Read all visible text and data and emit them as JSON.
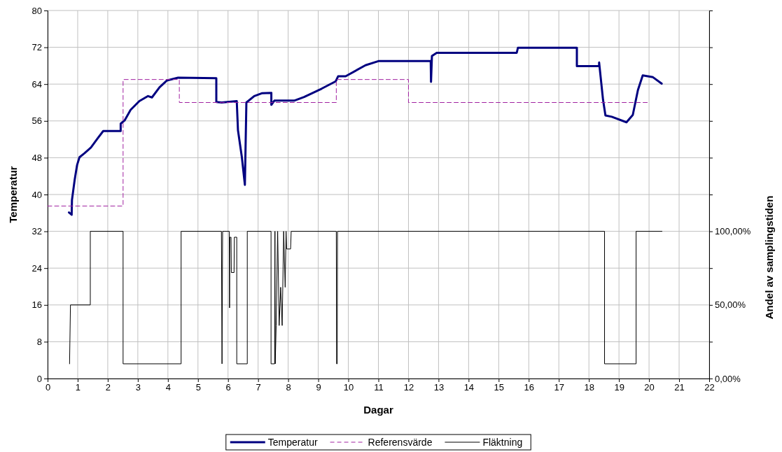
{
  "chart_data": {
    "type": "line",
    "xlabel": "Dagar",
    "ylabel": "Temperatur",
    "y2label": "Andel av samplingstiden",
    "xlim": [
      0,
      22
    ],
    "xticks": [
      0,
      1,
      2,
      3,
      4,
      5,
      6,
      7,
      8,
      9,
      10,
      11,
      12,
      13,
      14,
      15,
      16,
      17,
      18,
      19,
      20,
      21,
      22
    ],
    "ylim": [
      0,
      80
    ],
    "yticks": [
      0,
      8,
      16,
      24,
      32,
      40,
      48,
      56,
      64,
      72,
      80
    ],
    "y2lim": [
      0,
      250
    ],
    "y2ticks": [
      {
        "value": 0,
        "label": "0,00%"
      },
      {
        "value": 25,
        "label": null
      },
      {
        "value": 50,
        "label": "50,00%"
      },
      {
        "value": 75,
        "label": null
      },
      {
        "value": 100,
        "label": "100,00%"
      },
      {
        "value": 125,
        "label": null
      },
      {
        "value": 150,
        "label": null
      },
      {
        "value": 175,
        "label": null
      },
      {
        "value": 200,
        "label": null
      },
      {
        "value": 225,
        "label": null
      },
      {
        "value": 250,
        "label": null
      }
    ],
    "grid": true,
    "legend": "bottom",
    "marker": "none",
    "series": [
      {
        "name": "Temperatur",
        "color": "#000080",
        "line_style": "solid",
        "x": [
          0.71,
          0.8,
          0.81,
          0.9,
          0.98,
          1.06,
          1.23,
          1.44,
          1.64,
          1.85,
          2.43,
          2.43,
          2.56,
          2.76,
          3.05,
          3.34,
          3.47,
          3.72,
          3.97,
          4.34,
          5.61,
          5.61,
          5.79,
          6.29,
          6.33,
          6.46,
          6.56,
          6.61,
          6.87,
          7.12,
          7.44,
          7.44,
          7.54,
          8.2,
          8.53,
          9.11,
          9.58,
          9.66,
          9.91,
          10.57,
          11.0,
          12.74,
          12.75,
          12.78,
          12.94,
          15.6,
          15.64,
          17.6,
          17.6,
          18.34,
          18.34,
          18.47,
          18.55,
          18.76,
          19.25,
          19.46,
          19.63,
          19.79,
          20.13,
          20.42
        ],
        "values": [
          36.1,
          35.6,
          38.8,
          43.2,
          46.4,
          48.1,
          49.0,
          50.2,
          52.0,
          53.8,
          53.8,
          55.4,
          56.1,
          58.4,
          60.3,
          61.4,
          61.1,
          63.3,
          64.8,
          65.4,
          65.3,
          60.1,
          60.0,
          60.3,
          54.0,
          48.1,
          42.1,
          60.0,
          61.4,
          62.0,
          62.1,
          59.5,
          60.4,
          60.4,
          61.2,
          63.0,
          64.6,
          65.7,
          65.7,
          68.1,
          69.0,
          69.0,
          64.5,
          70.1,
          70.8,
          70.8,
          71.9,
          71.9,
          67.9,
          67.9,
          68.7,
          60.6,
          57.2,
          56.9,
          55.7,
          57.3,
          62.7,
          65.9,
          65.5,
          64.1
        ]
      },
      {
        "name": "Referensvärde",
        "color": "#a020a0",
        "line_style": "dashed",
        "x": [
          0,
          2.51,
          2.51,
          4.38,
          4.38,
          9.6,
          9.6,
          12,
          12,
          20
        ],
        "values": [
          37.5,
          37.5,
          65,
          65,
          60,
          60,
          65,
          65,
          60,
          60
        ]
      },
      {
        "name": "Fläktning",
        "color": "#000000",
        "line_style": "solid",
        "axis": "y2",
        "x": [
          0.73,
          0.76,
          1.42,
          1.42,
          2.51,
          2.51,
          4.44,
          4.44,
          5.78,
          5.8,
          5.82,
          6.04,
          6.05,
          6.06,
          6.1,
          6.11,
          6.2,
          6.21,
          6.29,
          6.29,
          6.64,
          6.64,
          7.43,
          7.43,
          7.55,
          7.56,
          7.57,
          7.6,
          7.65,
          7.7,
          7.75,
          7.8,
          7.85,
          7.9,
          7.93,
          7.95,
          8.08,
          8.1,
          9.6,
          9.61,
          9.63,
          9.64,
          18.52,
          18.52,
          19.57,
          19.57,
          20.43
        ],
        "values": [
          10,
          50,
          50,
          100,
          100,
          10,
          10,
          100,
          100,
          10,
          100,
          100,
          48,
          96,
          96,
          72,
          72,
          96,
          96,
          10,
          10,
          100,
          100,
          10,
          10,
          100,
          10,
          36,
          100,
          36,
          62,
          36,
          100,
          62,
          100,
          88,
          88,
          100,
          100,
          10,
          10,
          100,
          100,
          10,
          10,
          100,
          100
        ]
      }
    ]
  }
}
